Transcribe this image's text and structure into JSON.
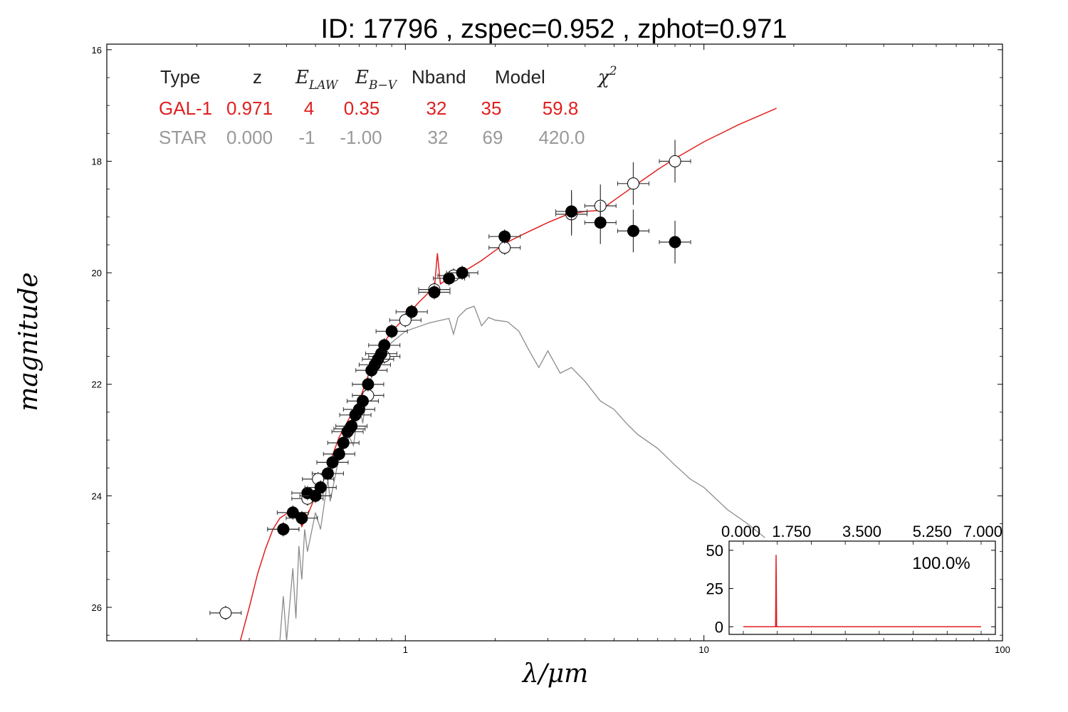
{
  "colors": {
    "gal": "#e02020",
    "star": "#8c8c8c",
    "axis": "#000000"
  },
  "chart_data": {
    "type": "scatter",
    "title": "ID:  17796 , zspec=0.952 , zphot=0.971",
    "xlabel": "λ/μm",
    "ylabel": "magnitude",
    "xscale": "log",
    "xlim": [
      0.1,
      100
    ],
    "ylim": [
      26.6,
      15.9
    ],
    "yreversed": true,
    "x_ticks": [
      "1",
      "10",
      "100"
    ],
    "y_ticks": [
      "16",
      "18",
      "20",
      "22",
      "24",
      "26"
    ],
    "table": {
      "headers": [
        "Type",
        "z",
        "E",
        "LAW",
        "E",
        "B−V",
        "Nband",
        "Model",
        "χ",
        "2"
      ],
      "rows": [
        {
          "name": "gal",
          "values": [
            "GAL-1",
            "0.971",
            "4",
            "0.35",
            "32",
            "35",
            "59.8"
          ]
        },
        {
          "name": "star",
          "values": [
            "STAR",
            "0.000",
            "-1",
            "-1.00",
            "32",
            "69",
            "420.0"
          ]
        }
      ]
    },
    "series": [
      {
        "name": "GAL-1",
        "kind": "line",
        "points": [
          [
            0.28,
            26.6
          ],
          [
            0.3,
            26.0
          ],
          [
            0.32,
            25.4
          ],
          [
            0.34,
            24.95
          ],
          [
            0.36,
            24.6
          ],
          [
            0.38,
            24.4
          ],
          [
            0.4,
            24.32
          ],
          [
            0.42,
            24.3
          ],
          [
            0.44,
            24.42
          ],
          [
            0.45,
            24.55
          ],
          [
            0.47,
            24.35
          ],
          [
            0.5,
            24.0
          ],
          [
            0.55,
            23.5
          ],
          [
            0.6,
            22.95
          ],
          [
            0.65,
            22.6
          ],
          [
            0.7,
            22.3
          ],
          [
            0.75,
            21.85
          ],
          [
            0.8,
            21.5
          ],
          [
            0.85,
            21.25
          ],
          [
            0.9,
            21.05
          ],
          [
            1.0,
            20.8
          ],
          [
            1.1,
            20.55
          ],
          [
            1.2,
            20.35
          ],
          [
            1.25,
            20.3
          ],
          [
            1.28,
            19.65
          ],
          [
            1.31,
            20.2
          ],
          [
            1.4,
            20.1
          ],
          [
            1.6,
            19.95
          ],
          [
            1.8,
            19.78
          ],
          [
            2.0,
            19.6
          ],
          [
            2.2,
            19.45
          ],
          [
            2.5,
            19.3
          ],
          [
            3.0,
            19.1
          ],
          [
            3.5,
            18.95
          ],
          [
            4.0,
            18.9
          ],
          [
            4.5,
            18.88
          ],
          [
            5.0,
            18.7
          ],
          [
            6.0,
            18.4
          ],
          [
            7.0,
            18.15
          ],
          [
            8.0,
            17.95
          ],
          [
            10.0,
            17.65
          ],
          [
            13.0,
            17.35
          ],
          [
            17.5,
            17.05
          ]
        ]
      },
      {
        "name": "STAR",
        "kind": "line",
        "points": [
          [
            0.38,
            26.6
          ],
          [
            0.39,
            25.8
          ],
          [
            0.4,
            26.6
          ],
          [
            0.42,
            25.3
          ],
          [
            0.43,
            26.2
          ],
          [
            0.44,
            24.9
          ],
          [
            0.45,
            25.5
          ],
          [
            0.46,
            24.6
          ],
          [
            0.47,
            25.0
          ],
          [
            0.5,
            24.3
          ],
          [
            0.52,
            24.6
          ],
          [
            0.55,
            23.7
          ],
          [
            0.56,
            24.1
          ],
          [
            0.6,
            23.3
          ],
          [
            0.65,
            22.95
          ],
          [
            0.67,
            23.1
          ],
          [
            0.7,
            22.35
          ],
          [
            0.72,
            22.7
          ],
          [
            0.75,
            22.0
          ],
          [
            0.8,
            21.7
          ],
          [
            0.85,
            21.42
          ],
          [
            0.9,
            21.25
          ],
          [
            1.0,
            21.05
          ],
          [
            1.2,
            20.9
          ],
          [
            1.4,
            20.82
          ],
          [
            1.45,
            21.1
          ],
          [
            1.5,
            20.8
          ],
          [
            1.6,
            20.65
          ],
          [
            1.7,
            20.6
          ],
          [
            1.8,
            20.95
          ],
          [
            1.9,
            20.8
          ],
          [
            2.0,
            20.85
          ],
          [
            2.2,
            20.88
          ],
          [
            2.4,
            21.05
          ],
          [
            2.6,
            21.4
          ],
          [
            2.8,
            21.7
          ],
          [
            3.0,
            21.4
          ],
          [
            3.3,
            21.8
          ],
          [
            3.6,
            21.7
          ],
          [
            4.0,
            21.95
          ],
          [
            4.5,
            22.3
          ],
          [
            5.0,
            22.45
          ],
          [
            5.5,
            22.7
          ],
          [
            6.0,
            22.9
          ],
          [
            7.0,
            23.15
          ],
          [
            8.0,
            23.45
          ],
          [
            9.0,
            23.7
          ],
          [
            10.0,
            23.85
          ],
          [
            12.0,
            24.25
          ],
          [
            14.0,
            24.5
          ],
          [
            16.0,
            24.75
          ]
        ]
      }
    ],
    "observed": [
      [
        0.39,
        24.6
      ],
      [
        0.42,
        24.3
      ],
      [
        0.45,
        24.4
      ],
      [
        0.47,
        23.95
      ],
      [
        0.5,
        24.0
      ],
      [
        0.52,
        23.85
      ],
      [
        0.55,
        23.6
      ],
      [
        0.57,
        23.4
      ],
      [
        0.6,
        23.25
      ],
      [
        0.62,
        23.05
      ],
      [
        0.64,
        22.85
      ],
      [
        0.66,
        22.75
      ],
      [
        0.68,
        22.55
      ],
      [
        0.7,
        22.45
      ],
      [
        0.72,
        22.3
      ],
      [
        0.75,
        22.0
      ],
      [
        0.77,
        21.75
      ],
      [
        0.79,
        21.65
      ],
      [
        0.81,
        21.55
      ],
      [
        0.83,
        21.45
      ],
      [
        0.85,
        21.3
      ],
      [
        0.9,
        21.05
      ],
      [
        1.05,
        20.7
      ],
      [
        1.25,
        20.35
      ],
      [
        1.4,
        20.1
      ],
      [
        1.55,
        20.0
      ],
      [
        2.15,
        19.35
      ],
      [
        3.6,
        18.9
      ],
      [
        4.5,
        19.1
      ],
      [
        5.8,
        19.25
      ],
      [
        8.0,
        19.45
      ]
    ],
    "observed_open": [
      [
        0.25,
        26.1
      ],
      [
        0.39,
        24.6
      ],
      [
        0.47,
        24.05
      ],
      [
        0.51,
        23.7
      ],
      [
        0.65,
        22.8
      ],
      [
        0.75,
        22.2
      ],
      [
        0.85,
        21.5
      ],
      [
        1.0,
        20.85
      ],
      [
        1.25,
        20.3
      ],
      [
        1.45,
        20.05
      ],
      [
        2.15,
        19.55
      ],
      [
        3.6,
        18.95
      ],
      [
        4.5,
        18.8
      ],
      [
        5.8,
        18.4
      ],
      [
        8.0,
        18.0
      ]
    ],
    "inset": {
      "type": "line",
      "x_ticks": [
        "0.000",
        "1.750",
        "3.500",
        "5.250",
        "7.000"
      ],
      "y_ticks": [
        "0",
        "25",
        "50"
      ],
      "xlim": [
        0,
        7
      ],
      "ylim": [
        -5,
        56
      ],
      "label": "100.0%",
      "points": [
        [
          0,
          0
        ],
        [
          0.95,
          0
        ],
        [
          0.965,
          47
        ],
        [
          0.98,
          0
        ],
        [
          7,
          0
        ]
      ]
    }
  }
}
